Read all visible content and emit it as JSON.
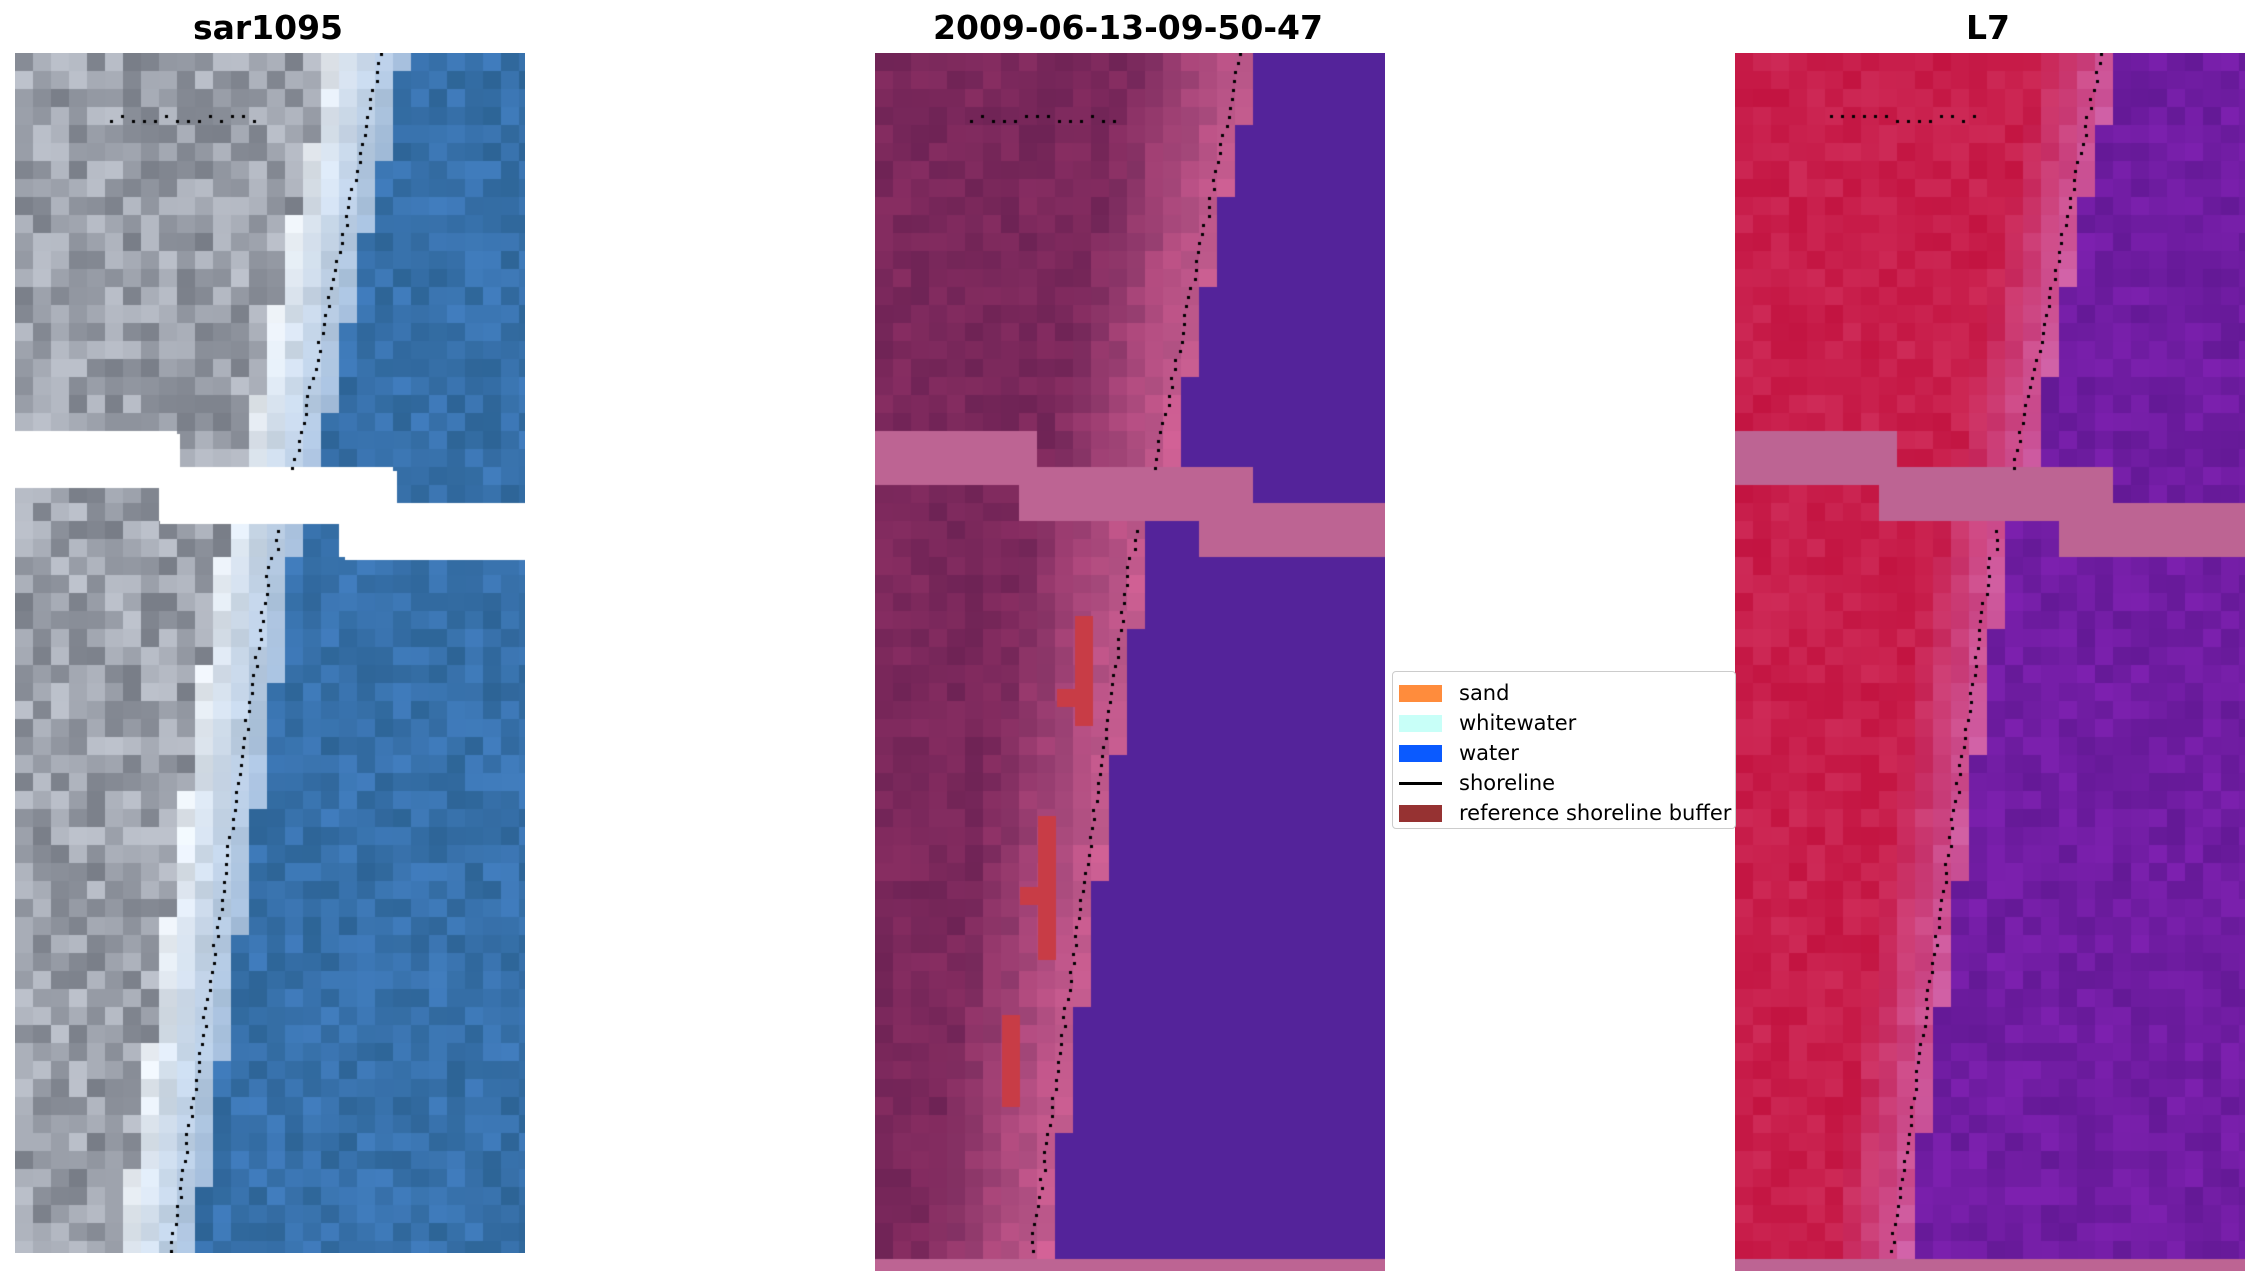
{
  "panels": [
    {
      "title": "sar1095",
      "style": "rgb"
    },
    {
      "title": "2009-06-13-09-50-47",
      "style": "classified"
    },
    {
      "title": "L7",
      "style": "index"
    }
  ],
  "legend": {
    "items": [
      {
        "label": "sand",
        "color": "#ff8c3c",
        "kind": "patch"
      },
      {
        "label": "whitewater",
        "color": "#c8fff8",
        "kind": "patch"
      },
      {
        "label": "water",
        "color": "#0a5aff",
        "kind": "patch"
      },
      {
        "label": "shoreline",
        "color": "#000000",
        "kind": "line"
      },
      {
        "label": "reference shoreline buffer",
        "color": "#963232",
        "kind": "patch"
      }
    ]
  },
  "colors": {
    "no_data_band": "#bd6493",
    "classified_water": "#54239a",
    "index_water": "#6f1f9e",
    "index_land": "#c11a47",
    "buffer_overlay": "#c83c46",
    "shoreline_points": "#000000"
  }
}
